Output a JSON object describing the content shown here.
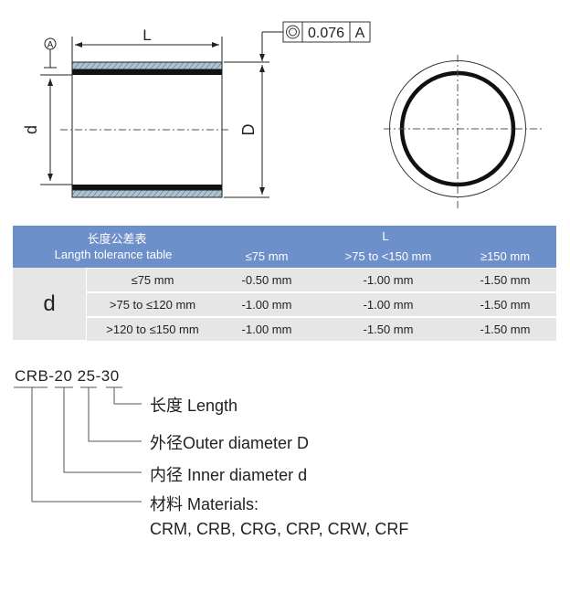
{
  "drawing": {
    "length_label": "L",
    "inner_label": "d",
    "outer_label": "D",
    "datum_label": "A",
    "tolerance_frame": {
      "symbol": "concentricity-icon",
      "value": "0.076",
      "datum": "A"
    },
    "colors": {
      "hatch_fill": "#a9c4d4",
      "line": "#222222"
    }
  },
  "table": {
    "header_color": "#6d8fca",
    "row_color": "#e6e6e6",
    "title_cn": "长度公差表",
    "title_en": "Langth tolerance table",
    "column_group": "L",
    "columns": [
      "≤75 mm",
      ">75 to <150 mm",
      "≥150 mm"
    ],
    "row_group": "d",
    "rows": [
      {
        "range": "≤75 mm",
        "values": [
          "-0.50 mm",
          "-1.00 mm",
          "-1.50 mm"
        ]
      },
      {
        "range": ">75 to ≤120 mm",
        "values": [
          "-1.00 mm",
          "-1.00 mm",
          "-1.50 mm"
        ]
      },
      {
        "range": ">120 to ≤150 mm",
        "values": [
          "-1.00 mm",
          "-1.50 mm",
          "-1.50 mm"
        ]
      }
    ]
  },
  "code": {
    "example": "CRB-20 25-30",
    "legend": [
      {
        "cn": "长度",
        "en": "Length"
      },
      {
        "cn": "外径",
        "en": "Outer diameter D"
      },
      {
        "cn": "内径",
        "en": "Inner diameter d"
      },
      {
        "cn": "材料",
        "en": "Materials:"
      }
    ],
    "materials": "CRM, CRB, CRG, CRP, CRW, CRF"
  }
}
